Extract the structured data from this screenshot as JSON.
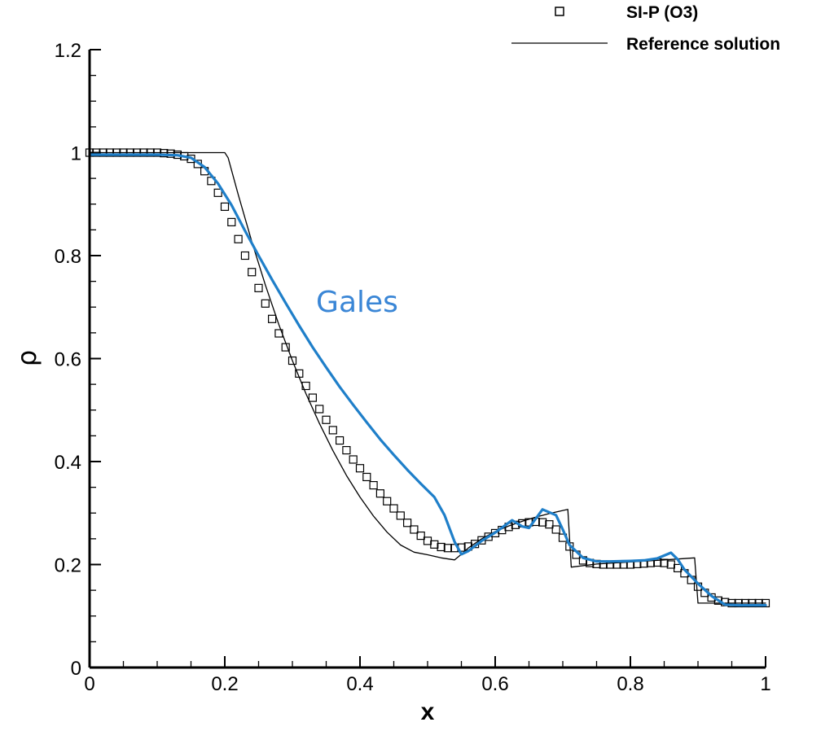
{
  "chart_data": {
    "type": "line",
    "xlabel": "x",
    "ylabel": "ρ",
    "xlim": [
      0,
      1
    ],
    "ylim": [
      0,
      1.2
    ],
    "x_ticks": [
      "0",
      "0.2",
      "0.4",
      "0.6",
      "0.8",
      "1"
    ],
    "y_ticks": [
      "0",
      "0.2",
      "0.4",
      "0.6",
      "0.8",
      "1",
      "1.2"
    ],
    "legend_placement": "top-right",
    "annotation": {
      "text": "Gales",
      "x": 0.335,
      "y": 0.71,
      "color": "#3a86d6"
    },
    "series": [
      {
        "name": "SI-P (O3)",
        "style": "markers",
        "marker": "square",
        "color": "#000000",
        "x": [
          0.0,
          0.01,
          0.02,
          0.03,
          0.04,
          0.05,
          0.06,
          0.07,
          0.08,
          0.09,
          0.1,
          0.11,
          0.12,
          0.13,
          0.14,
          0.15,
          0.16,
          0.17,
          0.18,
          0.19,
          0.2,
          0.21,
          0.22,
          0.23,
          0.24,
          0.25,
          0.26,
          0.27,
          0.28,
          0.29,
          0.3,
          0.31,
          0.32,
          0.33,
          0.34,
          0.35,
          0.36,
          0.37,
          0.38,
          0.39,
          0.4,
          0.41,
          0.42,
          0.43,
          0.44,
          0.45,
          0.46,
          0.47,
          0.48,
          0.49,
          0.5,
          0.51,
          0.52,
          0.53,
          0.54,
          0.55,
          0.56,
          0.57,
          0.58,
          0.59,
          0.6,
          0.61,
          0.62,
          0.63,
          0.64,
          0.65,
          0.66,
          0.67,
          0.68,
          0.69,
          0.7,
          0.71,
          0.72,
          0.73,
          0.74,
          0.75,
          0.76,
          0.77,
          0.78,
          0.79,
          0.8,
          0.81,
          0.82,
          0.83,
          0.84,
          0.85,
          0.86,
          0.87,
          0.88,
          0.89,
          0.9,
          0.91,
          0.92,
          0.93,
          0.94,
          0.95,
          0.96,
          0.97,
          0.98,
          0.99,
          1.0
        ],
        "y": [
          1.0,
          1.0,
          1.0,
          1.0,
          1.0,
          1.0,
          1.0,
          1.0,
          1.0,
          1.0,
          1.0,
          0.999,
          0.998,
          0.996,
          0.993,
          0.988,
          0.978,
          0.964,
          0.945,
          0.922,
          0.895,
          0.865,
          0.832,
          0.8,
          0.768,
          0.737,
          0.707,
          0.677,
          0.649,
          0.622,
          0.596,
          0.571,
          0.547,
          0.524,
          0.502,
          0.481,
          0.461,
          0.441,
          0.422,
          0.404,
          0.387,
          0.37,
          0.354,
          0.338,
          0.323,
          0.309,
          0.295,
          0.281,
          0.268,
          0.256,
          0.246,
          0.239,
          0.234,
          0.232,
          0.232,
          0.233,
          0.235,
          0.24,
          0.247,
          0.254,
          0.261,
          0.267,
          0.273,
          0.277,
          0.28,
          0.282,
          0.283,
          0.282,
          0.278,
          0.268,
          0.252,
          0.235,
          0.219,
          0.208,
          0.203,
          0.201,
          0.2,
          0.2,
          0.2,
          0.2,
          0.2,
          0.201,
          0.202,
          0.203,
          0.204,
          0.203,
          0.2,
          0.193,
          0.183,
          0.17,
          0.157,
          0.145,
          0.136,
          0.13,
          0.127,
          0.125,
          0.125,
          0.125,
          0.125,
          0.125,
          0.125
        ]
      },
      {
        "name": "Reference solution",
        "style": "line",
        "color": "#000000",
        "x": [
          0.0,
          0.1,
          0.2,
          0.205,
          0.22,
          0.24,
          0.26,
          0.28,
          0.3,
          0.32,
          0.34,
          0.36,
          0.38,
          0.4,
          0.42,
          0.44,
          0.46,
          0.48,
          0.5,
          0.52,
          0.54,
          0.55,
          0.56,
          0.58,
          0.6,
          0.62,
          0.64,
          0.66,
          0.68,
          0.7,
          0.7075,
          0.7125,
          0.75,
          0.8,
          0.85,
          0.895,
          0.9,
          1.0
        ],
        "y": [
          1.0,
          1.0,
          1.0,
          0.99,
          0.918,
          0.827,
          0.743,
          0.666,
          0.596,
          0.532,
          0.474,
          0.421,
          0.373,
          0.331,
          0.294,
          0.263,
          0.238,
          0.224,
          0.219,
          0.213,
          0.209,
          0.22,
          0.232,
          0.25,
          0.264,
          0.275,
          0.284,
          0.292,
          0.299,
          0.305,
          0.307,
          0.195,
          0.201,
          0.205,
          0.209,
          0.213,
          0.125,
          0.125
        ]
      },
      {
        "name": "",
        "style": "line",
        "color": "#1f7fc9",
        "x": [
          0.0,
          0.05,
          0.1,
          0.13,
          0.15,
          0.17,
          0.19,
          0.21,
          0.23,
          0.25,
          0.27,
          0.29,
          0.31,
          0.33,
          0.35,
          0.37,
          0.39,
          0.41,
          0.43,
          0.45,
          0.47,
          0.49,
          0.51,
          0.525,
          0.54,
          0.55,
          0.56,
          0.58,
          0.6,
          0.625,
          0.64,
          0.65,
          0.67,
          0.69,
          0.7,
          0.71,
          0.73,
          0.75,
          0.77,
          0.8,
          0.82,
          0.84,
          0.86,
          0.87,
          0.88,
          0.9,
          0.92,
          0.94,
          0.96,
          1.0
        ],
        "y": [
          0.996,
          0.996,
          0.996,
          0.995,
          0.99,
          0.972,
          0.94,
          0.898,
          0.848,
          0.8,
          0.753,
          0.708,
          0.664,
          0.622,
          0.583,
          0.545,
          0.51,
          0.476,
          0.443,
          0.413,
          0.384,
          0.357,
          0.331,
          0.296,
          0.244,
          0.22,
          0.226,
          0.246,
          0.262,
          0.286,
          0.274,
          0.271,
          0.307,
          0.296,
          0.268,
          0.238,
          0.213,
          0.206,
          0.206,
          0.207,
          0.208,
          0.212,
          0.223,
          0.21,
          0.19,
          0.163,
          0.139,
          0.122,
          0.121,
          0.121
        ]
      }
    ]
  }
}
